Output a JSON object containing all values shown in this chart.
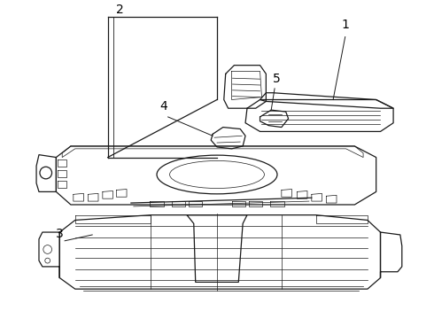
{
  "background_color": "#ffffff",
  "line_color": "#1a1a1a",
  "label_color": "#000000",
  "fig_width": 4.9,
  "fig_height": 3.6,
  "dpi": 100,
  "lw_main": 0.9,
  "lw_thin": 0.5,
  "label_fontsize": 10
}
